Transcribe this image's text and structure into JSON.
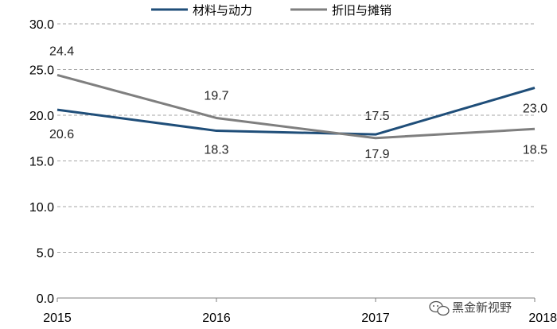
{
  "chart_data": {
    "type": "line",
    "x": [
      "2015",
      "2016",
      "2017",
      "2018"
    ],
    "ylim": [
      0,
      30
    ],
    "yticks": [
      "0.0",
      "5.0",
      "10.0",
      "15.0",
      "20.0",
      "25.0",
      "30.0"
    ],
    "grid": true,
    "legend_position": "top",
    "series": [
      {
        "name": "材料与动力",
        "color": "#1f4e79",
        "values": [
          20.6,
          18.3,
          17.9,
          23.0
        ],
        "labels": [
          "20.6",
          "18.3",
          "17.9",
          "23.0"
        ]
      },
      {
        "name": "折旧与摊销",
        "color": "#7f7f7f",
        "values": [
          24.4,
          19.7,
          17.5,
          18.5
        ],
        "labels": [
          "24.4",
          "19.7",
          "17.5",
          "18.5"
        ]
      }
    ]
  },
  "watermark": {
    "text": "黑金新视野",
    "icon": "wechat-icon"
  }
}
